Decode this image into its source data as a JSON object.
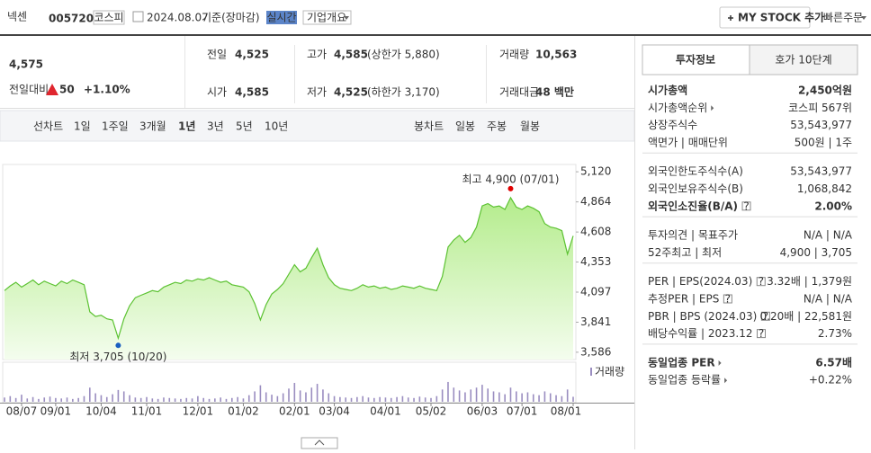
{
  "header": {
    "name": "넥센",
    "code": "005720",
    "market": "코스피",
    "date": "2024.08.07",
    "basis": "기준(장마감)",
    "realtime": "실시간",
    "overview": "기업개요",
    "mystock": "MY STOCK 추가",
    "quick_order": "빠른주문"
  },
  "quote": {
    "price": "4,575",
    "change_label": "전일대비",
    "change": "50",
    "change_pct": "+1.10%",
    "color": "#e0262e",
    "cells": [
      {
        "label": "전일",
        "value": "4,525",
        "color": "#222"
      },
      {
        "label": "고가",
        "value": "4,585",
        "note": "(상한가 5,880)",
        "color": "#e0262e"
      },
      {
        "label": "거래량",
        "value": "10,563",
        "color": "#222"
      },
      {
        "label": "시가",
        "value": "4,585",
        "color": "#e0262e"
      },
      {
        "label": "저가",
        "value": "4,525",
        "note": "(하한가 3,170)",
        "color": "#222"
      },
      {
        "label": "거래대금",
        "value": "48 백만",
        "color": "#222"
      }
    ]
  },
  "periods": {
    "line_label": "선차트",
    "line": [
      "1일",
      "1주일",
      "3개월",
      "1년",
      "3년",
      "5년",
      "10년"
    ],
    "selected": 3,
    "candle_label": "봉차트",
    "candle": [
      "일봉",
      "주봉",
      "월봉"
    ]
  },
  "chart_data": {
    "type": "area",
    "color": "#5cc232",
    "values": [
      4110,
      4150,
      4180,
      4140,
      4170,
      4200,
      4160,
      4190,
      4170,
      4150,
      4190,
      4170,
      4200,
      4180,
      4160,
      3930,
      3890,
      3900,
      3870,
      3860,
      3705,
      3870,
      3980,
      4050,
      4070,
      4090,
      4110,
      4100,
      4140,
      4160,
      4180,
      4170,
      4200,
      4190,
      4210,
      4200,
      4220,
      4200,
      4180,
      4190,
      4160,
      4150,
      4140,
      4100,
      4000,
      3860,
      3990,
      4080,
      4120,
      4170,
      4250,
      4330,
      4270,
      4300,
      4390,
      4470,
      4330,
      4220,
      4160,
      4130,
      4120,
      4110,
      4130,
      4160,
      4140,
      4150,
      4130,
      4140,
      4120,
      4130,
      4150,
      4140,
      4130,
      4150,
      4130,
      4120,
      4110,
      4230,
      4480,
      4540,
      4580,
      4520,
      4560,
      4650,
      4830,
      4850,
      4820,
      4830,
      4800,
      4900,
      4820,
      4800,
      4830,
      4810,
      4780,
      4680,
      4650,
      4640,
      4620,
      4420,
      4575
    ],
    "ylim": [
      3524,
      5182
    ],
    "xlim": [
      0,
      100
    ],
    "yticks": [
      {
        "value": 5120,
        "label": "5,120"
      },
      {
        "value": 4864,
        "label": "4,864"
      },
      {
        "value": 4608,
        "label": "4,608"
      },
      {
        "value": 4353,
        "label": "4,353"
      },
      {
        "value": 4097,
        "label": "4,097"
      },
      {
        "value": 3841,
        "label": "3,841"
      },
      {
        "value": 3586,
        "label": "3,586"
      }
    ],
    "xticks": [
      {
        "value": 3,
        "label": "08/07"
      },
      {
        "value": 9,
        "label": "09/01"
      },
      {
        "value": 17,
        "label": "10/04"
      },
      {
        "value": 25,
        "label": "11/01"
      },
      {
        "value": 34,
        "label": "12/01"
      },
      {
        "value": 42,
        "label": "01/02"
      },
      {
        "value": 51,
        "label": "02/01"
      },
      {
        "value": 58,
        "label": "03/04"
      },
      {
        "value": 67,
        "label": "04/01"
      },
      {
        "value": 75,
        "label": "05/02"
      },
      {
        "value": 84,
        "label": "06/03"
      },
      {
        "value": 91,
        "label": "07/01"
      },
      {
        "value": 100,
        "label": "08/01"
      }
    ],
    "annotations": [
      {
        "text": "최고 4,900 (07/01)",
        "index": 89,
        "color": "#e00000"
      },
      {
        "text": "최저 3,705 (10/20)",
        "index": 20,
        "color": "#1a5fc0"
      }
    ],
    "volume": {
      "name": "거래량",
      "color": "#9a8dc0",
      "ylim": [
        0,
        80000
      ],
      "values": [
        9000,
        12000,
        8000,
        15000,
        7000,
        10000,
        6000,
        9000,
        11000,
        8000,
        7000,
        9000,
        6000,
        8000,
        12000,
        30000,
        18000,
        14000,
        10000,
        16000,
        25000,
        22000,
        14000,
        9000,
        8000,
        10000,
        7000,
        6000,
        9000,
        8000,
        7000,
        6000,
        8000,
        7000,
        12000,
        8000,
        6000,
        7000,
        9000,
        6000,
        8000,
        10000,
        7000,
        14000,
        22000,
        35000,
        20000,
        15000,
        12000,
        18000,
        28000,
        40000,
        24000,
        20000,
        30000,
        38000,
        26000,
        18000,
        12000,
        10000,
        9000,
        8000,
        10000,
        12000,
        9000,
        8000,
        10000,
        9000,
        8000,
        10000,
        12000,
        9000,
        8000,
        11000,
        9000,
        8000,
        12000,
        26000,
        42000,
        30000,
        24000,
        20000,
        26000,
        30000,
        36000,
        28000,
        22000,
        20000,
        16000,
        30000,
        22000,
        18000,
        20000,
        16000,
        14000,
        22000,
        18000,
        14000,
        12000,
        26000,
        10563
      ]
    }
  },
  "info": {
    "tabs": [
      "투자정보",
      "호가 10단계"
    ],
    "sections": [
      [
        {
          "label": "시가총액",
          "value": "2,450억원",
          "bold": true
        },
        {
          "label": "시가총액순위",
          "value": "코스피 567위",
          "link": true
        },
        {
          "label": "상장주식수",
          "value": "53,543,977"
        },
        {
          "label": "액면가 | 매매단위",
          "value": "500원 | 1주"
        }
      ],
      [
        {
          "label": "외국인한도주식수(A)",
          "value": "53,543,977"
        },
        {
          "label": "외국인보유주식수(B)",
          "value": "1,068,842"
        },
        {
          "label": "외국인소진율(B/A)",
          "value": "2.00%",
          "bold": true,
          "help": true
        }
      ],
      [
        {
          "label": "투자의견 | 목표주가",
          "value": "N/A | N/A"
        },
        {
          "label": "52주최고 | 최저",
          "value": "4,900 | 3,705"
        }
      ],
      [
        {
          "label": "PER | EPS(2024.03)",
          "value": "3.32배 | 1,379원",
          "help": true
        },
        {
          "label": "추정PER | EPS",
          "value": "N/A | N/A",
          "help": true
        },
        {
          "label": "PBR | BPS (2024.03)",
          "value": "0.20배 | 22,581원",
          "help": true
        },
        {
          "label": "배당수익률 | 2023.12",
          "value": "2.73%",
          "help": true
        }
      ],
      [
        {
          "label": "동일업종 PER",
          "value": "6.57배",
          "bold": true,
          "link": true
        },
        {
          "label": "동일업종 등락률",
          "value": "+0.22%",
          "link": true,
          "color": "#e0262e"
        }
      ]
    ]
  }
}
